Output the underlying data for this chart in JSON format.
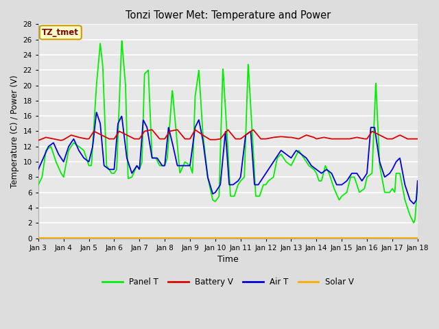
{
  "title": "Tonzi Tower Met: Temperature and Power",
  "xlabel": "Time",
  "ylabel": "Temperature (C) / Power (V)",
  "ylim": [
    0,
    28
  ],
  "yticks": [
    0,
    2,
    4,
    6,
    8,
    10,
    12,
    14,
    16,
    18,
    20,
    22,
    24,
    26,
    28
  ],
  "x_labels": [
    "Jan 3",
    "Jan 4",
    "Jan 5",
    "Jan 6",
    "Jan 7",
    "Jan 8",
    "Jan 9",
    "Jan 10",
    "Jan 11",
    "Jan 12",
    "Jan 13",
    "Jan 14",
    "Jan 15",
    "Jan 16",
    "Jan 17",
    "Jan 18"
  ],
  "n_days": 15,
  "bg_color": "#dddddd",
  "plot_bg_color": "#e8e8e8",
  "grid_color": "#ffffff",
  "annotation_text": "TZ_tmet",
  "annotation_bg": "#ffffcc",
  "annotation_border": "#cc9900",
  "annotation_text_color": "#880000",
  "legend_entries": [
    "Panel T",
    "Battery V",
    "Air T",
    "Solar V"
  ],
  "legend_colors": [
    "#00ee00",
    "#dd0000",
    "#0000dd",
    "#ffaa00"
  ],
  "line_width": 1.3,
  "panel_t_keypoints": [
    [
      0.0,
      7.0
    ],
    [
      0.15,
      8.0
    ],
    [
      0.3,
      11.5
    ],
    [
      0.5,
      12.0
    ],
    [
      0.7,
      10.0
    ],
    [
      0.9,
      8.5
    ],
    [
      1.0,
      8.0
    ],
    [
      1.2,
      11.5
    ],
    [
      1.4,
      12.5
    ],
    [
      1.6,
      12.0
    ],
    [
      1.8,
      11.5
    ],
    [
      2.0,
      9.5
    ],
    [
      2.1,
      9.5
    ],
    [
      2.3,
      20.0
    ],
    [
      2.45,
      25.5
    ],
    [
      2.55,
      22.5
    ],
    [
      2.7,
      9.5
    ],
    [
      2.9,
      8.5
    ],
    [
      3.0,
      8.5
    ],
    [
      3.1,
      9.0
    ],
    [
      3.3,
      26.0
    ],
    [
      3.45,
      20.0
    ],
    [
      3.55,
      7.8
    ],
    [
      3.7,
      8.0
    ],
    [
      3.9,
      9.5
    ],
    [
      4.0,
      9.0
    ],
    [
      4.1,
      10.0
    ],
    [
      4.2,
      21.5
    ],
    [
      4.35,
      22.0
    ],
    [
      4.5,
      10.5
    ],
    [
      4.65,
      10.5
    ],
    [
      4.8,
      9.5
    ],
    [
      5.0,
      9.5
    ],
    [
      5.1,
      10.5
    ],
    [
      5.3,
      19.5
    ],
    [
      5.45,
      14.0
    ],
    [
      5.6,
      8.5
    ],
    [
      5.8,
      10.0
    ],
    [
      6.0,
      9.5
    ],
    [
      6.1,
      8.5
    ],
    [
      6.2,
      18.5
    ],
    [
      6.35,
      22.0
    ],
    [
      6.5,
      14.0
    ],
    [
      6.7,
      8.0
    ],
    [
      6.9,
      5.0
    ],
    [
      7.0,
      4.8
    ],
    [
      7.15,
      5.5
    ],
    [
      7.3,
      22.5
    ],
    [
      7.45,
      14.5
    ],
    [
      7.6,
      5.5
    ],
    [
      7.75,
      5.5
    ],
    [
      7.9,
      7.0
    ],
    [
      8.0,
      7.5
    ],
    [
      8.15,
      8.0
    ],
    [
      8.3,
      23.0
    ],
    [
      8.45,
      14.5
    ],
    [
      8.6,
      5.5
    ],
    [
      8.75,
      5.5
    ],
    [
      8.9,
      7.0
    ],
    [
      9.0,
      7.0
    ],
    [
      9.1,
      7.5
    ],
    [
      9.3,
      8.0
    ],
    [
      9.45,
      10.5
    ],
    [
      9.6,
      11.0
    ],
    [
      9.8,
      10.0
    ],
    [
      10.0,
      9.5
    ],
    [
      10.15,
      10.5
    ],
    [
      10.3,
      11.5
    ],
    [
      10.5,
      10.5
    ],
    [
      10.7,
      9.5
    ],
    [
      10.9,
      9.0
    ],
    [
      11.0,
      8.5
    ],
    [
      11.1,
      7.5
    ],
    [
      11.2,
      7.5
    ],
    [
      11.35,
      9.5
    ],
    [
      11.5,
      8.5
    ],
    [
      11.7,
      6.5
    ],
    [
      11.9,
      5.0
    ],
    [
      12.0,
      5.5
    ],
    [
      12.2,
      6.0
    ],
    [
      12.35,
      8.0
    ],
    [
      12.5,
      8.0
    ],
    [
      12.7,
      6.0
    ],
    [
      12.9,
      6.5
    ],
    [
      13.0,
      8.0
    ],
    [
      13.2,
      8.5
    ],
    [
      13.35,
      20.5
    ],
    [
      13.5,
      9.5
    ],
    [
      13.7,
      6.0
    ],
    [
      13.9,
      6.0
    ],
    [
      14.0,
      6.5
    ],
    [
      14.1,
      6.0
    ],
    [
      14.15,
      8.5
    ],
    [
      14.3,
      8.5
    ],
    [
      14.5,
      5.0
    ],
    [
      14.7,
      3.0
    ],
    [
      14.85,
      2.0
    ],
    [
      14.9,
      2.5
    ],
    [
      15.0,
      7.0
    ]
  ],
  "air_t_keypoints": [
    [
      0.0,
      9.0
    ],
    [
      0.2,
      10.5
    ],
    [
      0.4,
      12.0
    ],
    [
      0.6,
      12.5
    ],
    [
      0.8,
      11.0
    ],
    [
      1.0,
      10.0
    ],
    [
      1.2,
      12.0
    ],
    [
      1.4,
      13.0
    ],
    [
      1.6,
      11.5
    ],
    [
      1.8,
      10.5
    ],
    [
      2.0,
      10.0
    ],
    [
      2.15,
      12.0
    ],
    [
      2.3,
      16.5
    ],
    [
      2.45,
      15.0
    ],
    [
      2.6,
      9.5
    ],
    [
      2.8,
      9.0
    ],
    [
      3.0,
      9.0
    ],
    [
      3.15,
      15.0
    ],
    [
      3.3,
      16.0
    ],
    [
      3.5,
      10.5
    ],
    [
      3.7,
      8.5
    ],
    [
      3.9,
      9.5
    ],
    [
      4.0,
      9.0
    ],
    [
      4.15,
      15.5
    ],
    [
      4.3,
      14.5
    ],
    [
      4.5,
      10.5
    ],
    [
      4.7,
      10.5
    ],
    [
      4.9,
      9.5
    ],
    [
      5.0,
      9.5
    ],
    [
      5.15,
      14.5
    ],
    [
      5.3,
      12.5
    ],
    [
      5.5,
      9.5
    ],
    [
      5.7,
      9.5
    ],
    [
      6.0,
      9.5
    ],
    [
      6.2,
      14.5
    ],
    [
      6.35,
      15.5
    ],
    [
      6.5,
      13.0
    ],
    [
      6.7,
      8.0
    ],
    [
      6.9,
      5.8
    ],
    [
      7.0,
      6.0
    ],
    [
      7.2,
      7.0
    ],
    [
      7.4,
      14.0
    ],
    [
      7.55,
      7.0
    ],
    [
      7.7,
      7.0
    ],
    [
      7.9,
      7.5
    ],
    [
      8.0,
      8.0
    ],
    [
      8.2,
      13.5
    ],
    [
      8.4,
      14.0
    ],
    [
      8.55,
      7.0
    ],
    [
      8.7,
      7.0
    ],
    [
      8.9,
      8.0
    ],
    [
      9.0,
      8.5
    ],
    [
      9.2,
      9.5
    ],
    [
      9.4,
      10.5
    ],
    [
      9.6,
      11.5
    ],
    [
      9.8,
      11.0
    ],
    [
      10.0,
      10.5
    ],
    [
      10.2,
      11.5
    ],
    [
      10.4,
      11.0
    ],
    [
      10.6,
      10.5
    ],
    [
      10.8,
      9.5
    ],
    [
      11.0,
      9.0
    ],
    [
      11.2,
      8.5
    ],
    [
      11.4,
      9.0
    ],
    [
      11.6,
      8.5
    ],
    [
      11.8,
      7.0
    ],
    [
      12.0,
      7.0
    ],
    [
      12.2,
      7.5
    ],
    [
      12.4,
      8.5
    ],
    [
      12.6,
      8.5
    ],
    [
      12.8,
      7.5
    ],
    [
      13.0,
      8.5
    ],
    [
      13.15,
      14.5
    ],
    [
      13.3,
      14.5
    ],
    [
      13.5,
      10.0
    ],
    [
      13.7,
      8.0
    ],
    [
      13.9,
      8.5
    ],
    [
      14.0,
      9.0
    ],
    [
      14.15,
      10.0
    ],
    [
      14.3,
      10.5
    ],
    [
      14.5,
      7.0
    ],
    [
      14.7,
      5.0
    ],
    [
      14.85,
      4.5
    ],
    [
      14.95,
      5.0
    ],
    [
      15.0,
      7.5
    ]
  ],
  "battery_v_keypoints": [
    [
      0.0,
      12.8
    ],
    [
      0.3,
      13.2
    ],
    [
      0.6,
      13.0
    ],
    [
      0.9,
      12.8
    ],
    [
      1.0,
      12.9
    ],
    [
      1.3,
      13.5
    ],
    [
      1.6,
      13.2
    ],
    [
      1.9,
      13.0
    ],
    [
      2.0,
      13.0
    ],
    [
      2.2,
      14.0
    ],
    [
      2.5,
      13.5
    ],
    [
      2.8,
      13.0
    ],
    [
      3.0,
      13.0
    ],
    [
      3.2,
      14.0
    ],
    [
      3.5,
      13.5
    ],
    [
      3.8,
      13.0
    ],
    [
      4.0,
      13.0
    ],
    [
      4.2,
      14.0
    ],
    [
      4.5,
      14.2
    ],
    [
      4.8,
      13.0
    ],
    [
      5.0,
      13.0
    ],
    [
      5.2,
      14.0
    ],
    [
      5.5,
      14.2
    ],
    [
      5.8,
      13.0
    ],
    [
      6.0,
      13.0
    ],
    [
      6.2,
      14.2
    ],
    [
      6.5,
      13.5
    ],
    [
      6.8,
      12.9
    ],
    [
      7.0,
      12.9
    ],
    [
      7.2,
      13.0
    ],
    [
      7.5,
      14.2
    ],
    [
      7.8,
      13.0
    ],
    [
      8.0,
      13.0
    ],
    [
      8.2,
      13.5
    ],
    [
      8.5,
      14.2
    ],
    [
      8.8,
      13.0
    ],
    [
      9.0,
      13.0
    ],
    [
      9.3,
      13.2
    ],
    [
      9.6,
      13.3
    ],
    [
      9.9,
      13.2
    ],
    [
      10.0,
      13.2
    ],
    [
      10.3,
      13.0
    ],
    [
      10.6,
      13.5
    ],
    [
      10.9,
      13.2
    ],
    [
      11.0,
      13.0
    ],
    [
      11.3,
      13.2
    ],
    [
      11.6,
      13.0
    ],
    [
      11.9,
      13.0
    ],
    [
      12.0,
      13.0
    ],
    [
      12.3,
      13.0
    ],
    [
      12.6,
      13.2
    ],
    [
      12.9,
      13.0
    ],
    [
      13.0,
      13.0
    ],
    [
      13.2,
      14.0
    ],
    [
      13.5,
      13.5
    ],
    [
      13.8,
      13.0
    ],
    [
      14.0,
      13.0
    ],
    [
      14.3,
      13.5
    ],
    [
      14.6,
      13.0
    ],
    [
      14.9,
      13.0
    ],
    [
      15.0,
      13.0
    ]
  ]
}
